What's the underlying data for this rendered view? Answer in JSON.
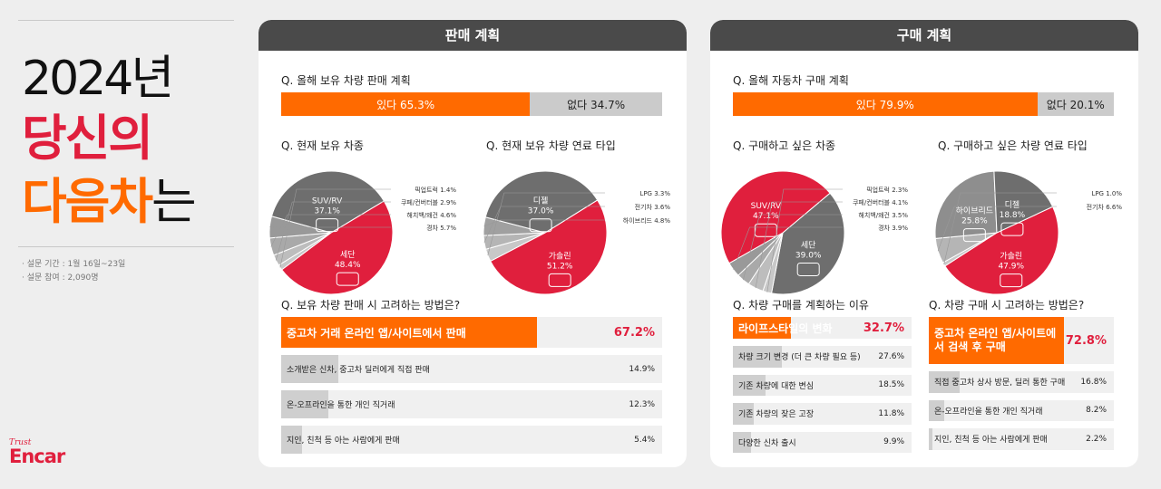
{
  "left": {
    "year": "2024년",
    "line2": "당신의",
    "line3": "다음차",
    "line3_tail": "는",
    "survey_period": "· 설문 기간 : 1월 16일~23일",
    "survey_count": "· 설문 참여 : 2,090명",
    "brand_tag": "Trust",
    "brand_name": "Encar"
  },
  "colors": {
    "red": "#e01f3d",
    "orange": "#ff6a00",
    "dark": "#6e6e6e",
    "gray": "#cbcbcb"
  },
  "sell": {
    "title": "판매 계획",
    "q_plan": "Q. 올해 보유 차량 판매 계획",
    "plan": {
      "yes_label": "있다 65.3%",
      "yes": 65.3,
      "no_label": "없다 34.7%",
      "no": 34.7
    },
    "q_type": "Q. 현재 보유 차종",
    "q_fuel": "Q. 현재 보유 차량 연료 타입",
    "q_method": "Q. 보유 차량 판매 시 고려하는 방법은?",
    "methods": [
      {
        "label": "중고차 거래 온라인 앱/사이트에서 판매",
        "pct_label": "67.2%",
        "value": 67.2
      },
      {
        "label": "소개받은 신차, 중고차 딜러에게 직접 판매",
        "pct_label": "14.9%",
        "value": 14.9
      },
      {
        "label": "온-오프라인을 통한 개인 직거래",
        "pct_label": "12.3%",
        "value": 12.3
      },
      {
        "label": "지인, 친척 등 아는 사람에게 판매",
        "pct_label": "5.4%",
        "value": 5.4
      }
    ]
  },
  "buy": {
    "title": "구매 계획",
    "q_plan": "Q. 올해 자동차 구매 계획",
    "plan": {
      "yes_label": "있다 79.9%",
      "yes": 79.9,
      "no_label": "없다 20.1%",
      "no": 20.1
    },
    "q_type": "Q. 구매하고 싶은 차종",
    "q_fuel": "Q. 구매하고 싶은 차량 연료 타입",
    "q_reason": "Q.  차량 구매를 계획하는 이유",
    "q_method": "Q. 차량 구매 시 고려하는 방법은?",
    "reasons": [
      {
        "label": "라이프스타일의 변화",
        "pct_label": "32.7%",
        "value": 32.7
      },
      {
        "label": "차량 크기 변경 (더 큰 차량 필요 등)",
        "pct_label": "27.6%",
        "value": 27.6
      },
      {
        "label": "기존 차량에 대한 변심",
        "pct_label": "18.5%",
        "value": 18.5
      },
      {
        "label": "기존 차량의 잦은 고장",
        "pct_label": "11.8%",
        "value": 11.8
      },
      {
        "label": "다양한 신차 출시",
        "pct_label": "9.9%",
        "value": 9.9
      }
    ],
    "methods": [
      {
        "label": "중고차 온라인 앱/사이트에서 검색 후 구매",
        "pct_label": "72.8%",
        "value": 72.8
      },
      {
        "label": "직접 중고차 상사 방문, 딜러 통한 구매",
        "pct_label": "16.8%",
        "value": 16.8
      },
      {
        "label": "온-오프라인을 통한 개인 직거래",
        "pct_label": "8.2%",
        "value": 8.2
      },
      {
        "label": "지인, 친척 등 아는 사람에게 판매",
        "pct_label": "2.2%",
        "value": 2.2
      }
    ]
  },
  "chart_data": [
    {
      "type": "pie",
      "title": "Q. 현재 보유 차종",
      "categories": [
        "세단",
        "픽업트럭",
        "쿠페/컨버터블",
        "해치백/왜건",
        "경차",
        "SUV/RV"
      ],
      "values": [
        48.4,
        1.4,
        2.9,
        4.6,
        5.7,
        37.1
      ],
      "labels": [
        "세단 48.4%",
        "픽업트럭 1.4%",
        "쿠페/컨버터블 2.9%",
        "해치백/왜건 4.6%",
        "경차 5.7%",
        "SUV/RV 37.1%"
      ]
    },
    {
      "type": "pie",
      "title": "Q. 현재 보유 차량 연료 타입",
      "categories": [
        "가솔린",
        "LPG",
        "전기차",
        "하이브리드",
        "디젤"
      ],
      "values": [
        51.2,
        3.3,
        3.6,
        4.8,
        37.0
      ],
      "labels": [
        "가솔린 51.2%",
        "LPG 3.3%",
        "전기차 3.6%",
        "하이브리드 4.8%",
        "디젤 37.0%"
      ]
    },
    {
      "type": "pie",
      "title": "Q. 구매하고 싶은 차종",
      "categories": [
        "세단",
        "픽업트럭",
        "쿠페/컨버터블",
        "해치백/왜건",
        "경차",
        "SUV/RV"
      ],
      "values": [
        39.0,
        2.3,
        4.1,
        3.5,
        3.9,
        47.1
      ],
      "labels": [
        "세단 39.0%",
        "픽업트럭 2.3%",
        "쿠페/컨버터블 4.1%",
        "해치백/왜건 3.5%",
        "경차 3.9%",
        "SUV/RV 47.1%"
      ]
    },
    {
      "type": "pie",
      "title": "Q. 구매하고 싶은 차량 연료 타입",
      "categories": [
        "가솔린",
        "LPG",
        "전기차",
        "하이브리드",
        "디젤"
      ],
      "values": [
        47.9,
        1.0,
        6.6,
        25.8,
        18.8
      ],
      "labels": [
        "가솔린 47.9%",
        "LPG 1.0%",
        "전기차 6.6%",
        "하이브리드 25.8%",
        "디젤 18.8%"
      ]
    }
  ]
}
